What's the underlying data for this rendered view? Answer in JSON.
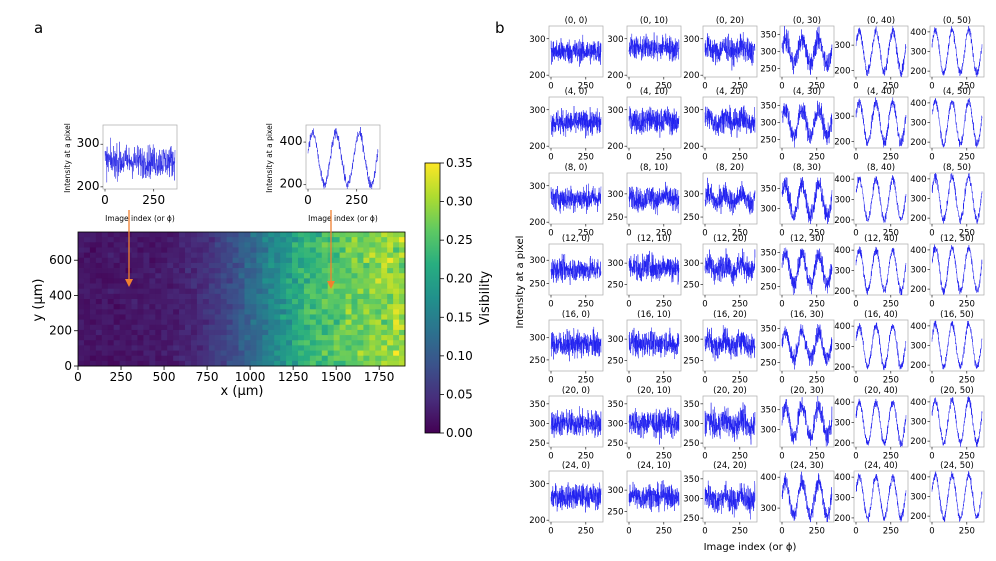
{
  "panel_labels": {
    "a": "a",
    "b": "b"
  },
  "chart_data": [
    {
      "type": "heatmap",
      "id": "visibility-map",
      "xlabel": "x (µm)",
      "ylabel": "y (µm)",
      "xlim": [
        0,
        1900
      ],
      "ylim": [
        0,
        760
      ],
      "xticks": [
        "0",
        "250",
        "500",
        "750",
        "1000",
        "1250",
        "1500",
        "1750"
      ],
      "xtick_values": [
        0,
        250,
        500,
        750,
        1000,
        1250,
        1500,
        1750
      ],
      "yticks": [
        "0",
        "200",
        "400",
        "600"
      ],
      "ytick_values": [
        0,
        200,
        400,
        600
      ],
      "grid_shape": [
        26,
        55
      ],
      "trend": "visibility increases with x: ~0.02 at x<500 µm, ~0.10 at 1000 µm, ~0.25–0.32 at 1500–1900 µm",
      "column_profile": [
        {
          "x": 0,
          "v": 0.02
        },
        {
          "x": 300,
          "v": 0.02
        },
        {
          "x": 500,
          "v": 0.025
        },
        {
          "x": 700,
          "v": 0.04
        },
        {
          "x": 900,
          "v": 0.08
        },
        {
          "x": 1100,
          "v": 0.15
        },
        {
          "x": 1300,
          "v": 0.22
        },
        {
          "x": 1500,
          "v": 0.26
        },
        {
          "x": 1700,
          "v": 0.28
        },
        {
          "x": 1900,
          "v": 0.3
        }
      ],
      "colorbar": {
        "label": "Visibility",
        "min": 0.0,
        "max": 0.35,
        "ticks": [
          "0.00",
          "0.05",
          "0.10",
          "0.15",
          "0.20",
          "0.25",
          "0.30",
          "0.35"
        ],
        "colormap": "viridis"
      },
      "arrow_color": "#f08030"
    },
    {
      "type": "line",
      "id": "inset-low",
      "xlabel": "Image index (or ϕ)",
      "ylabel": "Intensity at a pixel",
      "xticks": [
        "0",
        "250"
      ],
      "yticks": [
        "200",
        "300"
      ],
      "ylim": [
        195,
        345
      ],
      "center": 260,
      "amplitude": 0,
      "noise": 45,
      "n_points": 360,
      "line_color": "#2a2ae6"
    },
    {
      "type": "line",
      "id": "inset-high",
      "xlabel": "Image index (or ϕ)",
      "ylabel": "Intensity at a pixel",
      "xticks": [
        "0",
        "250"
      ],
      "yticks": [
        "200",
        "400"
      ],
      "ylim": [
        180,
        480
      ],
      "center": 320,
      "amplitude": 120,
      "noise": 30,
      "periods": 3,
      "n_points": 360,
      "line_color": "#2a2ae6"
    },
    {
      "type": "line",
      "id": "pixel-grid",
      "xlabel": "Image index (or ϕ)",
      "ylabel": "Intensity at a pixel",
      "xticks": [
        "0",
        "250"
      ],
      "n_points": 360,
      "periods": 3,
      "line_color": "#2020f0",
      "rows": [
        {
          "y": 0,
          "cells": [
            {
              "title": "(0, 0)",
              "yticks": [
                "200",
                "300"
              ],
              "ylim": [
                195,
                335
              ],
              "center": 265,
              "amp": 0,
              "noise": 40
            },
            {
              "title": "(0, 10)",
              "yticks": [
                "200",
                "300"
              ],
              "ylim": [
                195,
                335
              ],
              "center": 275,
              "amp": 5,
              "noise": 40
            },
            {
              "title": "(0, 20)",
              "yticks": [
                "200",
                "300"
              ],
              "ylim": [
                195,
                335
              ],
              "center": 270,
              "amp": 8,
              "noise": 40
            },
            {
              "title": "(0, 30)",
              "yticks": [
                "250",
                "300",
                "350"
              ],
              "ylim": [
                225,
                375
              ],
              "center": 300,
              "amp": 35,
              "noise": 35
            },
            {
              "title": "(0, 40)",
              "yticks": [
                "200",
                "300"
              ],
              "ylim": [
                175,
                375
              ],
              "center": 275,
              "amp": 80,
              "noise": 25
            },
            {
              "title": "(0, 50)",
              "yticks": [
                "200",
                "300",
                "400"
              ],
              "ylim": [
                170,
                430
              ],
              "center": 300,
              "amp": 110,
              "noise": 25
            }
          ]
        },
        {
          "y": 4,
          "cells": [
            {
              "title": "(4, 0)",
              "yticks": [
                "200",
                "300"
              ],
              "ylim": [
                195,
                335
              ],
              "center": 265,
              "amp": 0,
              "noise": 40
            },
            {
              "title": "(4, 10)",
              "yticks": [
                "200",
                "300"
              ],
              "ylim": [
                195,
                335
              ],
              "center": 270,
              "amp": 5,
              "noise": 40
            },
            {
              "title": "(4, 20)",
              "yticks": [
                "200",
                "300"
              ],
              "ylim": [
                195,
                335
              ],
              "center": 270,
              "amp": 10,
              "noise": 40
            },
            {
              "title": "(4, 30)",
              "yticks": [
                "250",
                "300",
                "350"
              ],
              "ylim": [
                225,
                375
              ],
              "center": 300,
              "amp": 40,
              "noise": 35
            },
            {
              "title": "(4, 40)",
              "yticks": [
                "200",
                "300"
              ],
              "ylim": [
                175,
                375
              ],
              "center": 275,
              "amp": 80,
              "noise": 25
            },
            {
              "title": "(4, 50)",
              "yticks": [
                "200",
                "300",
                "400"
              ],
              "ylim": [
                170,
                430
              ],
              "center": 300,
              "amp": 110,
              "noise": 25
            }
          ]
        },
        {
          "y": 8,
          "cells": [
            {
              "title": "(8, 0)",
              "yticks": [
                "200",
                "300"
              ],
              "ylim": [
                195,
                335
              ],
              "center": 265,
              "amp": 0,
              "noise": 40
            },
            {
              "title": "(8, 10)",
              "yticks": [
                "250",
                "300"
              ],
              "ylim": [
                235,
                345
              ],
              "center": 290,
              "amp": 5,
              "noise": 30
            },
            {
              "title": "(8, 20)",
              "yticks": [
                "250",
                "300"
              ],
              "ylim": [
                235,
                345
              ],
              "center": 290,
              "amp": 10,
              "noise": 30
            },
            {
              "title": "(8, 30)",
              "yticks": [
                "300",
                "350"
              ],
              "ylim": [
                260,
                390
              ],
              "center": 320,
              "amp": 40,
              "noise": 30
            },
            {
              "title": "(8, 40)",
              "yticks": [
                "200",
                "300",
                "400"
              ],
              "ylim": [
                180,
                430
              ],
              "center": 300,
              "amp": 100,
              "noise": 25
            },
            {
              "title": "(8, 50)",
              "yticks": [
                "200",
                "300",
                "400"
              ],
              "ylim": [
                170,
                430
              ],
              "center": 300,
              "amp": 110,
              "noise": 25
            }
          ]
        },
        {
          "y": 12,
          "cells": [
            {
              "title": "(12, 0)",
              "yticks": [
                "250",
                "300"
              ],
              "ylim": [
                225,
                335
              ],
              "center": 280,
              "amp": 0,
              "noise": 30
            },
            {
              "title": "(12, 10)",
              "yticks": [
                "250",
                "300"
              ],
              "ylim": [
                225,
                345
              ],
              "center": 290,
              "amp": 5,
              "noise": 35
            },
            {
              "title": "(12, 20)",
              "yticks": [
                "250",
                "300"
              ],
              "ylim": [
                225,
                345
              ],
              "center": 290,
              "amp": 10,
              "noise": 35
            },
            {
              "title": "(12, 30)",
              "yticks": [
                "250",
                "300",
                "350"
              ],
              "ylim": [
                225,
                375
              ],
              "center": 300,
              "amp": 45,
              "noise": 30
            },
            {
              "title": "(12, 40)",
              "yticks": [
                "200",
                "300",
                "400"
              ],
              "ylim": [
                180,
                430
              ],
              "center": 300,
              "amp": 100,
              "noise": 25
            },
            {
              "title": "(12, 50)",
              "yticks": [
                "200",
                "300",
                "400"
              ],
              "ylim": [
                170,
                430
              ],
              "center": 300,
              "amp": 110,
              "noise": 25
            }
          ]
        },
        {
          "y": 16,
          "cells": [
            {
              "title": "(16, 0)",
              "yticks": [
                "250",
                "300"
              ],
              "ylim": [
                225,
                340
              ],
              "center": 285,
              "amp": 0,
              "noise": 35
            },
            {
              "title": "(16, 10)",
              "yticks": [
                "250",
                "300"
              ],
              "ylim": [
                225,
                345
              ],
              "center": 290,
              "amp": 5,
              "noise": 35
            },
            {
              "title": "(16, 20)",
              "yticks": [
                "250",
                "300"
              ],
              "ylim": [
                225,
                345
              ],
              "center": 290,
              "amp": 10,
              "noise": 35
            },
            {
              "title": "(16, 30)",
              "yticks": [
                "250",
                "300",
                "350"
              ],
              "ylim": [
                225,
                375
              ],
              "center": 300,
              "amp": 40,
              "noise": 30
            },
            {
              "title": "(16, 40)",
              "yticks": [
                "200",
                "300",
                "400"
              ],
              "ylim": [
                180,
                430
              ],
              "center": 300,
              "amp": 100,
              "noise": 25
            },
            {
              "title": "(16, 50)",
              "yticks": [
                "200",
                "300",
                "400"
              ],
              "ylim": [
                170,
                430
              ],
              "center": 300,
              "amp": 110,
              "noise": 25
            }
          ]
        },
        {
          "y": 20,
          "cells": [
            {
              "title": "(20, 0)",
              "yticks": [
                "250",
                "300",
                "350"
              ],
              "ylim": [
                240,
                370
              ],
              "center": 300,
              "amp": 0,
              "noise": 40
            },
            {
              "title": "(20, 10)",
              "yticks": [
                "250",
                "300",
                "350"
              ],
              "ylim": [
                240,
                370
              ],
              "center": 300,
              "amp": 5,
              "noise": 40
            },
            {
              "title": "(20, 20)",
              "yticks": [
                "250",
                "300",
                "350"
              ],
              "ylim": [
                240,
                370
              ],
              "center": 300,
              "amp": 10,
              "noise": 40
            },
            {
              "title": "(20, 30)",
              "yticks": [
                "300",
                "350"
              ],
              "ylim": [
                255,
                385
              ],
              "center": 320,
              "amp": 40,
              "noise": 30
            },
            {
              "title": "(20, 40)",
              "yticks": [
                "200",
                "300",
                "400"
              ],
              "ylim": [
                180,
                430
              ],
              "center": 300,
              "amp": 100,
              "noise": 25
            },
            {
              "title": "(20, 50)",
              "yticks": [
                "200",
                "300",
                "400"
              ],
              "ylim": [
                170,
                430
              ],
              "center": 300,
              "amp": 110,
              "noise": 25
            }
          ]
        },
        {
          "y": 24,
          "cells": [
            {
              "title": "(24, 0)",
              "yticks": [
                "200",
                "300"
              ],
              "ylim": [
                195,
                335
              ],
              "center": 265,
              "amp": 0,
              "noise": 40
            },
            {
              "title": "(24, 10)",
              "yticks": [
                "250",
                "300"
              ],
              "ylim": [
                225,
                345
              ],
              "center": 285,
              "amp": 5,
              "noise": 35
            },
            {
              "title": "(24, 20)",
              "yticks": [
                "250",
                "300",
                "350"
              ],
              "ylim": [
                240,
                370
              ],
              "center": 300,
              "amp": 10,
              "noise": 40
            },
            {
              "title": "(24, 30)",
              "yticks": [
                "300",
                "400"
              ],
              "ylim": [
                255,
                420
              ],
              "center": 330,
              "amp": 55,
              "noise": 30
            },
            {
              "title": "(24, 40)",
              "yticks": [
                "200",
                "300",
                "400"
              ],
              "ylim": [
                180,
                430
              ],
              "center": 300,
              "amp": 100,
              "noise": 25
            },
            {
              "title": "(24, 50)",
              "yticks": [
                "200",
                "300",
                "400"
              ],
              "ylim": [
                170,
                430
              ],
              "center": 300,
              "amp": 110,
              "noise": 25
            }
          ]
        }
      ]
    }
  ]
}
